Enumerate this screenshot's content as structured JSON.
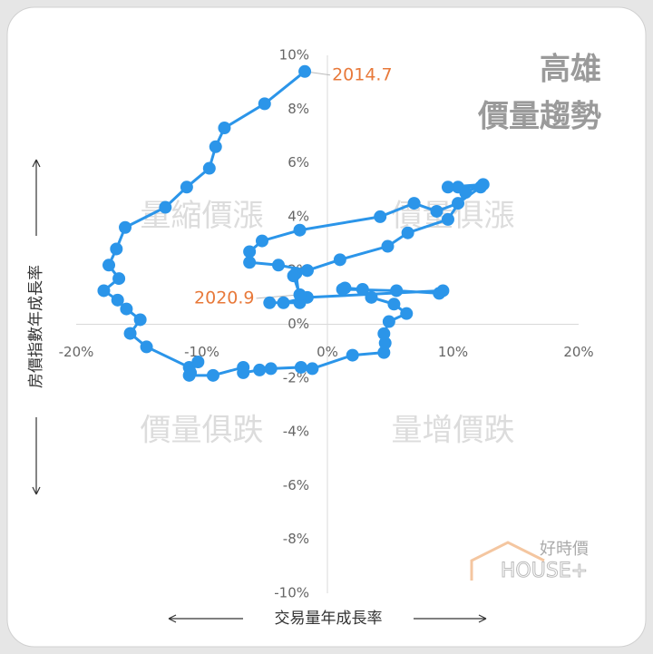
{
  "chart_data": {
    "type": "scatter-line",
    "title": [
      "高雄",
      "價量趨勢"
    ],
    "x_label": "交易量年成長率",
    "y_label": "房價指數年成長率",
    "color": "#2b95e9",
    "x": [
      -1.8,
      -5.0,
      -8.2,
      -8.9,
      -9.4,
      -11.2,
      -12.9,
      -16.1,
      -16.8,
      -17.4,
      -16.6,
      -17.8,
      -16.7,
      -16.0,
      -14.9,
      -15.7,
      -14.4,
      -11.0,
      -10.3,
      -10.9,
      -11.0,
      -9.1,
      -6.7,
      -6.7,
      -5.4,
      -4.5,
      -2.1,
      -1.2,
      2.0,
      4.5,
      4.6,
      4.5,
      4.9,
      6.3,
      5.3,
      3.5,
      2.8,
      1.4,
      1.2,
      5.5,
      8.9,
      9.2,
      -1.6,
      -3.5,
      -4.6,
      -2.2,
      -2.5,
      -1.6,
      -3.9,
      -6.2,
      -6.2,
      -5.2,
      -2.2,
      4.2,
      6.9,
      8.7,
      10.4,
      12.2,
      10.4,
      9.6,
      12.4,
      11.0,
      9.6,
      6.4,
      4.8,
      1.0,
      -1.6,
      -2.7,
      -2.2
    ],
    "y": [
      9.4,
      8.2,
      7.3,
      6.6,
      5.8,
      5.1,
      4.35,
      3.6,
      2.8,
      2.2,
      1.7,
      1.25,
      0.9,
      0.57,
      0.17,
      -0.34,
      -0.84,
      -1.6,
      -1.4,
      -1.8,
      -1.9,
      -1.9,
      -1.6,
      -1.8,
      -1.7,
      -1.65,
      -1.6,
      -1.65,
      -1.15,
      -1.05,
      -0.7,
      -0.35,
      0.1,
      0.4,
      0.75,
      1.0,
      1.3,
      1.35,
      1.3,
      1.25,
      1.15,
      1.25,
      1.0,
      0.8,
      0.8,
      0.8,
      1.9,
      2.0,
      2.2,
      2.3,
      2.7,
      3.1,
      3.5,
      4.0,
      4.5,
      4.2,
      4.5,
      5.1,
      5.1,
      5.1,
      5.2,
      4.9,
      3.9,
      3.4,
      2.9,
      2.4,
      2.0,
      1.8,
      1.1
    ],
    "annotations": [
      {
        "text": "2014.7",
        "index": 0
      },
      {
        "text": "2020.9",
        "index": 68
      }
    ],
    "quadrant_labels": [
      "量縮價漲",
      "價量俱漲",
      "價量俱跌",
      "量增價跌"
    ],
    "xlim": [
      -20,
      20
    ],
    "ylim": [
      -10,
      10
    ],
    "xticks": [
      {
        "value": -20,
        "label": "-20%"
      },
      {
        "value": -10,
        "label": "-10%"
      },
      {
        "value": 0,
        "label": "0%"
      },
      {
        "value": 10,
        "label": "10%"
      },
      {
        "value": 20,
        "label": "20%"
      }
    ],
    "yticks": [
      {
        "value": -10,
        "label": "-10%"
      },
      {
        "value": -8,
        "label": "-8%"
      },
      {
        "value": -6,
        "label": "-6%"
      },
      {
        "value": -4,
        "label": "-4%"
      },
      {
        "value": -2,
        "label": "-2%"
      },
      {
        "value": 0,
        "label": "0%"
      },
      {
        "value": 2,
        "label": "2%"
      },
      {
        "value": 4,
        "label": "4%"
      },
      {
        "value": 6,
        "label": "6%"
      },
      {
        "value": 8,
        "label": "8%"
      },
      {
        "value": 10,
        "label": "10%"
      }
    ]
  },
  "logo": {
    "name": "好時價",
    "brand": "HOUSE+"
  }
}
